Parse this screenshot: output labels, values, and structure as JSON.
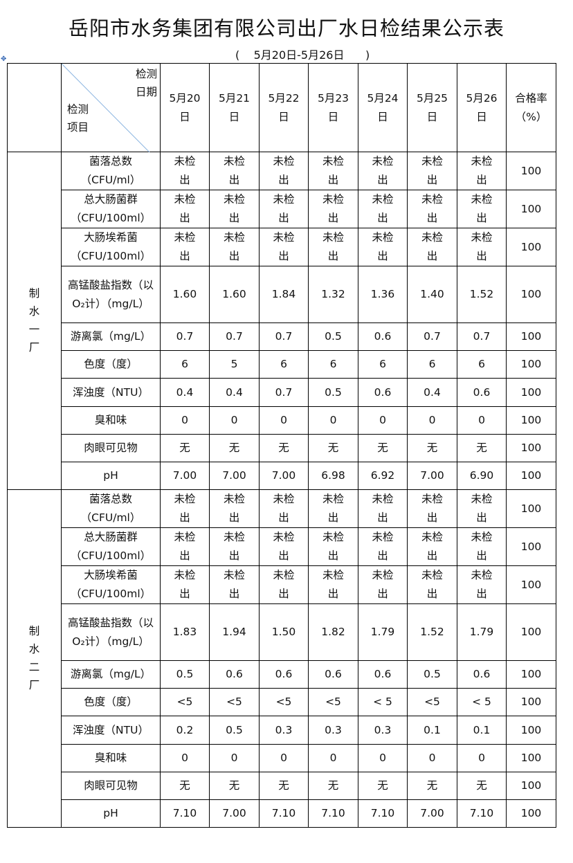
{
  "title": "岳阳市水务集团有限公司出厂水日检结果公示表",
  "subtitle": "(    5月20日-5月26日      )",
  "header": {
    "date_label_1": "检测",
    "date_label_2": "日期",
    "item_label_1": "检测",
    "item_label_2": "项目",
    "dates": [
      "5月20日",
      "5月21日",
      "5月22日",
      "5月23日",
      "5月24日",
      "5月25日",
      "5月26日"
    ],
    "pass_rate": "合格率（%）"
  },
  "plants": [
    {
      "name": "制水一厂",
      "rows": [
        {
          "item": "菌落总数（CFU/ml）",
          "values": [
            "未检出",
            "未检出",
            "未检出",
            "未检出",
            "未检出",
            "未检出",
            "未检出"
          ],
          "rate": "100"
        },
        {
          "item": "总大肠菌群（CFU/100ml）",
          "values": [
            "未检出",
            "未检出",
            "未检出",
            "未检出",
            "未检出",
            "未检出",
            "未检出"
          ],
          "rate": "100"
        },
        {
          "item": "大肠埃希菌（CFU/100ml）",
          "values": [
            "未检出",
            "未检出",
            "未检出",
            "未检出",
            "未检出",
            "未检出",
            "未检出"
          ],
          "rate": "100"
        },
        {
          "item": "高锰酸盐指数（以O₂计）（mg/L）",
          "values": [
            "1.60",
            "1.60",
            "1.84",
            "1.32",
            "1.36",
            "1.40",
            "1.52"
          ],
          "rate": "100"
        },
        {
          "item": "游离氯（mg/L）",
          "values": [
            "0.7",
            "0.7",
            "0.7",
            "0.5",
            "0.6",
            "0.7",
            "0.7"
          ],
          "rate": "100"
        },
        {
          "item": "色度（度）",
          "values": [
            "6",
            "5",
            "6",
            "6",
            "6",
            "6",
            "6"
          ],
          "rate": "100"
        },
        {
          "item": "浑浊度（NTU）",
          "values": [
            "0.4",
            "0.4",
            "0.7",
            "0.5",
            "0.6",
            "0.4",
            "0.6"
          ],
          "rate": "100"
        },
        {
          "item": "臭和味",
          "values": [
            "0",
            "0",
            "0",
            "0",
            "0",
            "0",
            "0"
          ],
          "rate": "100"
        },
        {
          "item": "肉眼可见物",
          "values": [
            "无",
            "无",
            "无",
            "无",
            "无",
            "无",
            "无"
          ],
          "rate": "100"
        },
        {
          "item": "pH",
          "values": [
            "7.00",
            "7.00",
            "7.00",
            "6.98",
            "6.92",
            "7.00",
            "6.90"
          ],
          "rate": "100"
        }
      ]
    },
    {
      "name": "制水二厂",
      "rows": [
        {
          "item": "菌落总数（CFU/ml）",
          "values": [
            "未检出",
            "未检出",
            "未检出",
            "未检出",
            "未检出",
            "未检出",
            "未检出"
          ],
          "rate": "100"
        },
        {
          "item": "总大肠菌群（CFU/100ml）",
          "values": [
            "未检出",
            "未检出",
            "未检出",
            "未检出",
            "未检出",
            "未检出",
            "未检出"
          ],
          "rate": "100"
        },
        {
          "item": "大肠埃希菌（CFU/100ml）",
          "values": [
            "未检出",
            "未检出",
            "未检出",
            "未检出",
            "未检出",
            "未检出",
            "未检出"
          ],
          "rate": "100"
        },
        {
          "item": "高锰酸盐指数（以O₂计）（mg/L）",
          "values": [
            "1.83",
            "1.94",
            "1.50",
            "1.82",
            "1.79",
            "1.52",
            "1.79"
          ],
          "rate": "100"
        },
        {
          "item": "游离氯（mg/L）",
          "values": [
            "0.5",
            "0.6",
            "0.6",
            "0.6",
            "0.6",
            "0.5",
            "0.6"
          ],
          "rate": "100"
        },
        {
          "item": "色度（度）",
          "values": [
            "<5",
            "<5",
            "<5",
            "<5",
            "< 5",
            "<5",
            "< 5"
          ],
          "rate": "100"
        },
        {
          "item": "浑浊度（NTU）",
          "values": [
            "0.2",
            "0.5",
            "0.3",
            "0.3",
            "0.3",
            "0.1",
            "0.1"
          ],
          "rate": "100"
        },
        {
          "item": "臭和味",
          "values": [
            "0",
            "0",
            "0",
            "0",
            "0",
            "0",
            "0"
          ],
          "rate": "100"
        },
        {
          "item": "肉眼可见物",
          "values": [
            "无",
            "无",
            "无",
            "无",
            "无",
            "无",
            "无"
          ],
          "rate": "100"
        },
        {
          "item": "pH",
          "values": [
            "7.10",
            "7.00",
            "7.10",
            "7.10",
            "7.10",
            "7.00",
            "7.10"
          ],
          "rate": "100"
        }
      ]
    }
  ]
}
